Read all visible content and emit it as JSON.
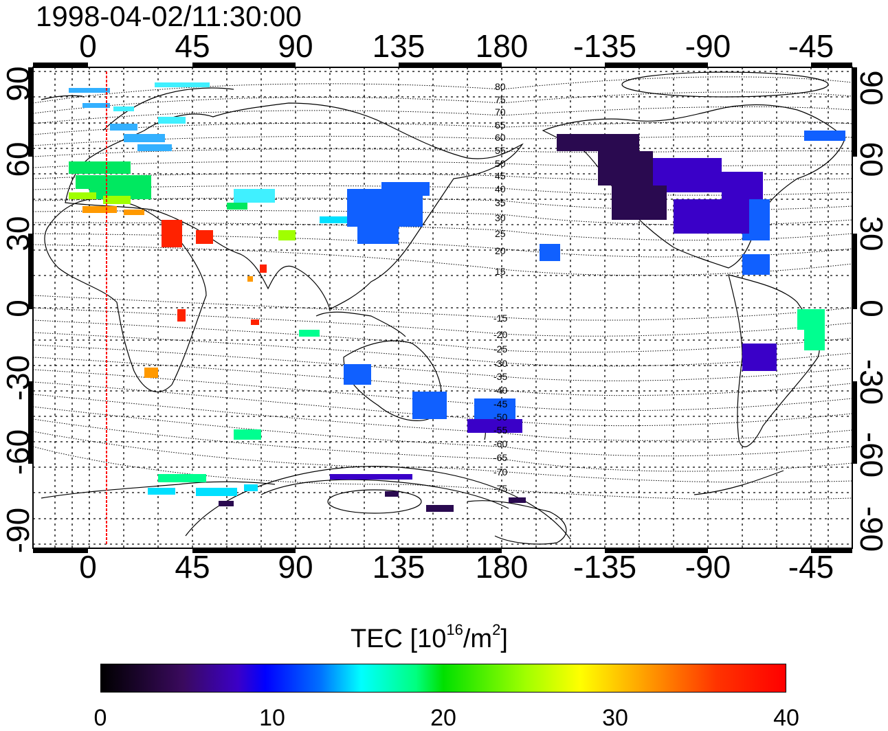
{
  "timestamp": "1998-04-02/11:30:00",
  "top_axis_labels": [
    "0",
    "45",
    "90",
    "135",
    "180",
    "-135",
    "-90",
    "-45"
  ],
  "bottom_axis_labels": [
    "0",
    "45",
    "90",
    "135",
    "180",
    "-135",
    "-90",
    "-45"
  ],
  "left_axis_labels": [
    "90",
    "60",
    "30",
    "0",
    "-30",
    "-60",
    "-90"
  ],
  "right_axis_labels": [
    "90",
    "60",
    "30",
    "0",
    "-30",
    "-60",
    "-90"
  ],
  "contour_labels": [
    "80",
    "75",
    "70",
    "65",
    "60",
    "55",
    "50",
    "45",
    "40",
    "35",
    "30",
    "25",
    "20",
    "15",
    "-15",
    "-20",
    "-25",
    "-30",
    "-35",
    "-40",
    "-45",
    "-50",
    "-55",
    "-60",
    "-65",
    "-70",
    "-75"
  ],
  "colorbar": {
    "title_prefix": "TEC  [10",
    "title_exp1": "16",
    "title_mid": "/m",
    "title_exp2": "2",
    "title_suffix": "]",
    "ticks": [
      "0",
      "10",
      "20",
      "30",
      "40"
    ]
  },
  "colors": {
    "midnight_line": "#ff0000"
  }
}
